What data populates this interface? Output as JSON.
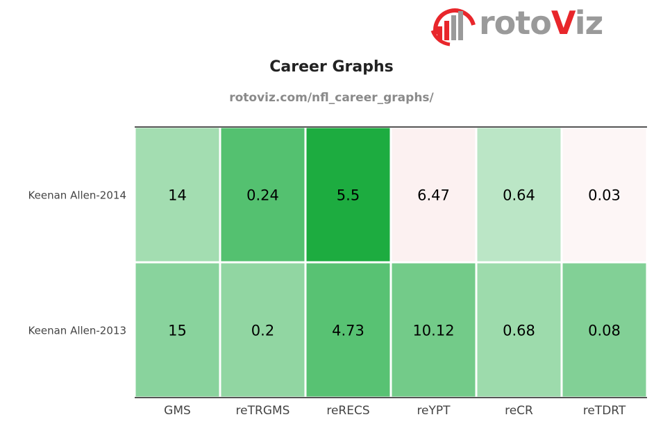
{
  "logo": {
    "name": "rotoviz",
    "text_before": "roto",
    "text_accent": "V",
    "text_after": "iz",
    "colors": {
      "gray": "#9a9a9a",
      "red": "#e8262b"
    }
  },
  "header": {
    "title": "Career Graphs",
    "subtitle": "rotoviz.com/nfl_career_graphs/"
  },
  "chart_data": {
    "type": "heatmap",
    "title": "Career Graphs",
    "subtitle": "rotoviz.com/nfl_career_graphs/",
    "columns": [
      "GMS",
      "reTRGMS",
      "reRECS",
      "reYPT",
      "reCR",
      "reTDRT"
    ],
    "rows": [
      "Keenan Allen-2014",
      "Keenan Allen-2013"
    ],
    "values": [
      [
        14,
        0.24,
        5.5,
        6.47,
        0.64,
        0.03
      ],
      [
        15,
        0.2,
        4.73,
        10.12,
        0.68,
        0.08
      ]
    ],
    "value_labels": [
      [
        "14",
        "0.24",
        "5.5",
        "6.47",
        "0.64",
        "0.03"
      ],
      [
        "15",
        "0.2",
        "4.73",
        "10.12",
        "0.68",
        "0.08"
      ]
    ],
    "cell_colors": [
      [
        "#a3ddb1",
        "#54c170",
        "#1dac40",
        "#fcf1f1",
        "#bbe6c6",
        "#fdf6f6"
      ],
      [
        "#89d39d",
        "#91d6a2",
        "#58c273",
        "#73cb89",
        "#9ddbac",
        "#82d096"
      ]
    ],
    "grid": false,
    "legend": "none"
  }
}
